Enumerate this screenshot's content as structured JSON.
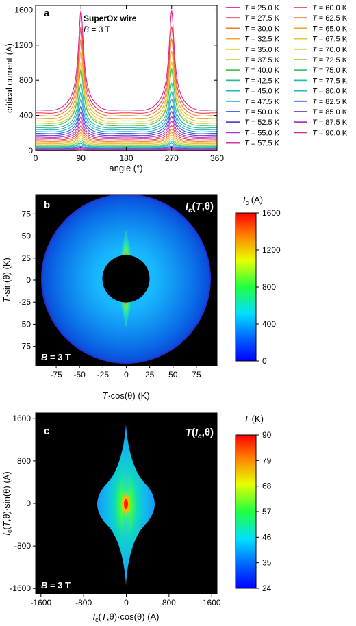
{
  "chart_data": [
    {
      "type": "line",
      "panel_label": "a",
      "annotation_title": "SuperOx wire",
      "annotation_field": "B = 3 T",
      "xlabel": "angle (°)",
      "ylabel": "critical current (A)",
      "xlim": [
        0,
        360
      ],
      "ylim": [
        0,
        1650
      ],
      "xticks": [
        "0",
        "90",
        "180",
        "270",
        "360"
      ],
      "yticks": [
        "0",
        "400",
        "800",
        "1200",
        "1600"
      ],
      "legend_position": "right",
      "legend_prefix": "T",
      "series": [
        {
          "name": "= 25.0 K",
          "T": 25.0,
          "color": "#e61e8c",
          "peak": 1580,
          "base": 440
        },
        {
          "name": "= 27.5 K",
          "T": 27.5,
          "color": "#e83c4a",
          "peak": 1400,
          "base": 410
        },
        {
          "name": "= 30.0 K",
          "T": 30.0,
          "color": "#ef7a2a",
          "peak": 1260,
          "base": 380
        },
        {
          "name": "= 32.5 K",
          "T": 32.5,
          "color": "#f5a623",
          "peak": 1120,
          "base": 350
        },
        {
          "name": "= 35.0 K",
          "T": 35.0,
          "color": "#e8c832",
          "peak": 1000,
          "base": 325
        },
        {
          "name": "= 37.5 K",
          "T": 37.5,
          "color": "#c8d040",
          "peak": 900,
          "base": 300
        },
        {
          "name": "= 40.0 K",
          "T": 40.0,
          "color": "#4cc34c",
          "peak": 920,
          "base": 275
        },
        {
          "name": "= 42.5 K",
          "T": 42.5,
          "color": "#2fb89a",
          "peak": 760,
          "base": 250
        },
        {
          "name": "= 45.0 K",
          "T": 45.0,
          "color": "#21b5c0",
          "peak": 660,
          "base": 230
        },
        {
          "name": "= 47.5 K",
          "T": 47.5,
          "color": "#2aa7e0",
          "peak": 580,
          "base": 210
        },
        {
          "name": "= 50.0 K",
          "T": 50.0,
          "color": "#2b5fd6",
          "peak": 500,
          "base": 190
        },
        {
          "name": "= 52.5 K",
          "T": 52.5,
          "color": "#6a3fd1",
          "peak": 440,
          "base": 170
        },
        {
          "name": "= 55.0 K",
          "T": 55.0,
          "color": "#a53bc8",
          "peak": 380,
          "base": 150
        },
        {
          "name": "= 57.5 K",
          "T": 57.5,
          "color": "#d63aa8",
          "peak": 330,
          "base": 135
        },
        {
          "name": "= 60.0 K",
          "T": 60.0,
          "color": "#e04a5a",
          "peak": 280,
          "base": 120
        },
        {
          "name": "= 62.5 K",
          "T": 62.5,
          "color": "#ee7d36",
          "peak": 240,
          "base": 105
        },
        {
          "name": "= 65.0 K",
          "T": 65.0,
          "color": "#f4a02e",
          "peak": 205,
          "base": 92
        },
        {
          "name": "= 67.5 K",
          "T": 67.5,
          "color": "#e9c23a",
          "peak": 175,
          "base": 80
        },
        {
          "name": "= 70.0 K",
          "T": 70.0,
          "color": "#cfd048",
          "peak": 148,
          "base": 68
        },
        {
          "name": "= 72.5 K",
          "T": 72.5,
          "color": "#9ad050",
          "peak": 124,
          "base": 58
        },
        {
          "name": "= 75.0 K",
          "T": 75.0,
          "color": "#45c070",
          "peak": 102,
          "base": 48
        },
        {
          "name": "= 77.5 K",
          "T": 77.5,
          "color": "#2bbaa8",
          "peak": 84,
          "base": 40
        },
        {
          "name": "= 80.0 K",
          "T": 80.0,
          "color": "#28b2d2",
          "peak": 66,
          "base": 32
        },
        {
          "name": "= 82.5 K",
          "T": 82.5,
          "color": "#2d6fd8",
          "peak": 50,
          "base": 25
        },
        {
          "name": "= 85.0 K",
          "T": 85.0,
          "color": "#6a3fd1",
          "peak": 36,
          "base": 18
        },
        {
          "name": "= 87.5 K",
          "T": 87.5,
          "color": "#a33cc6",
          "peak": 24,
          "base": 12
        },
        {
          "name": "= 90.0 K",
          "T": 90.0,
          "color": "#d6307a",
          "peak": 14,
          "base": 6
        }
      ]
    },
    {
      "type": "heatmap",
      "panel_label": "b",
      "map_title": "Ic(T,θ)",
      "annotation_field": "B = 3 T",
      "xlabel": "T·cos(θ) (K)",
      "ylabel": "T·sin(θ) (K)",
      "xlim": [
        -97,
        97
      ],
      "ylim": [
        -97,
        97
      ],
      "xticks": [
        "-75",
        "-50",
        "-25",
        "0",
        "25",
        "50",
        "75"
      ],
      "yticks": [
        "-75",
        "-50",
        "-25",
        "0",
        "25",
        "50",
        "75"
      ],
      "background": "#000000",
      "colorbar_title": "Ic (A)",
      "colorbar_range": [
        0,
        1600
      ],
      "colorbar_ticks": [
        "0",
        "400",
        "800",
        "1200",
        "1600"
      ]
    },
    {
      "type": "heatmap",
      "panel_label": "c",
      "map_title": "T(Ic,θ)",
      "annotation_field": "B = 3 T",
      "xlabel": "Ic(T,θ)·cos(θ) (A)",
      "ylabel": "Ic(T,θ)·sin(θ) (A)",
      "xlim": [
        -1700,
        1700
      ],
      "ylim": [
        -1700,
        1700
      ],
      "xticks": [
        "-1600",
        "-800",
        "0",
        "800",
        "1600"
      ],
      "yticks": [
        "-1600",
        "-800",
        "0",
        "800",
        "1600"
      ],
      "background": "#000000",
      "colorbar_title": "T (K)",
      "colorbar_range": [
        24,
        90
      ],
      "colorbar_ticks": [
        "24",
        "35",
        "46",
        "57",
        "68",
        "79",
        "90"
      ]
    }
  ]
}
